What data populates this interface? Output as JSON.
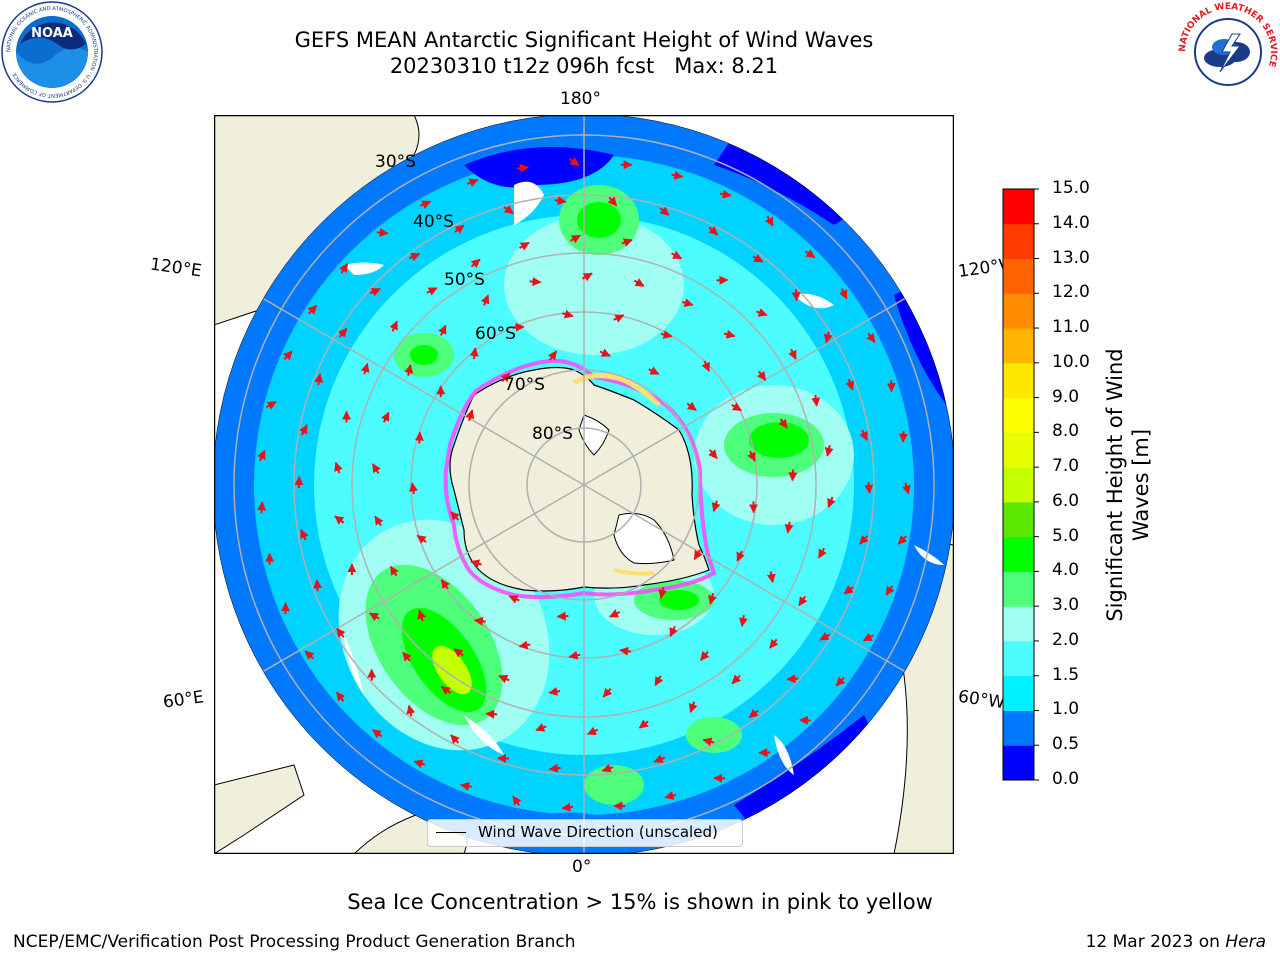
{
  "header": {
    "title_line1": "GEFS MEAN Antarctic Significant Height of Wind Waves",
    "title_line2": "20230310 t12z 096h fcst   Max: 8.21"
  },
  "logos": {
    "left": "NOAA",
    "left_ring_text": "NATIONAL OCEANIC AND ATMOSPHERIC ADMINISTRATION · U.S. DEPARTMENT OF COMMERCE",
    "right_ring_text": "NATIONAL WEATHER SERVICE"
  },
  "map": {
    "longitude_labels": {
      "top": "180°",
      "bottom": "0°",
      "upper_left": "120°E",
      "upper_right": "120°W",
      "lower_left": "60°E",
      "lower_right": "60°W"
    },
    "latitude_labels": [
      "30°S",
      "40°S",
      "50°S",
      "60°S",
      "70°S",
      "80°S"
    ],
    "legend": "Wind Wave Direction (unscaled)",
    "colors": {
      "land": "#efefdb",
      "ice_free_gap": "#ffffff",
      "grid": "#b0b0b0",
      "arrow": "#e8121b",
      "sea_ice_pink": "#ff44ff",
      "sea_ice_yellow": "#ffe070"
    }
  },
  "colorbar": {
    "label_line1": "Significant Height of Wind",
    "label_line2": "Waves [m]",
    "ticks": [
      "0.0",
      "0.5",
      "1.0",
      "1.5",
      "2.0",
      "3.0",
      "4.0",
      "5.0",
      "6.0",
      "7.0",
      "8.0",
      "9.0",
      "10.0",
      "11.0",
      "12.0",
      "13.0",
      "14.0",
      "15.0"
    ],
    "levels": [
      {
        "from": 0.0,
        "to": 0.5,
        "color": "#0000ff"
      },
      {
        "from": 0.5,
        "to": 1.0,
        "color": "#0079ff"
      },
      {
        "from": 1.0,
        "to": 1.5,
        "color": "#00f2ff"
      },
      {
        "from": 1.5,
        "to": 2.0,
        "color": "#4dfcff"
      },
      {
        "from": 2.0,
        "to": 3.0,
        "color": "#a0fff2"
      },
      {
        "from": 3.0,
        "to": 4.0,
        "color": "#4dff7a"
      },
      {
        "from": 4.0,
        "to": 5.0,
        "color": "#00ff00"
      },
      {
        "from": 5.0,
        "to": 6.0,
        "color": "#5ae800"
      },
      {
        "from": 6.0,
        "to": 7.0,
        "color": "#c4ff00"
      },
      {
        "from": 7.0,
        "to": 8.0,
        "color": "#e8ff00"
      },
      {
        "from": 8.0,
        "to": 9.0,
        "color": "#ffff00"
      },
      {
        "from": 9.0,
        "to": 10.0,
        "color": "#ffe800"
      },
      {
        "from": 10.0,
        "to": 11.0,
        "color": "#ffb400"
      },
      {
        "from": 11.0,
        "to": 12.0,
        "color": "#ff8c00"
      },
      {
        "from": 12.0,
        "to": 13.0,
        "color": "#ff6400"
      },
      {
        "from": 13.0,
        "to": 14.0,
        "color": "#ff3c00"
      },
      {
        "from": 14.0,
        "to": 15.0,
        "color": "#ff0000"
      }
    ]
  },
  "footer": {
    "note": "Sea Ice Concentration > 15% is shown in pink to yellow",
    "left": "NCEP/EMC/Verification Post Processing Product Generation Branch",
    "right_date": "12 Mar 2023 on ",
    "right_host": "Hera"
  }
}
